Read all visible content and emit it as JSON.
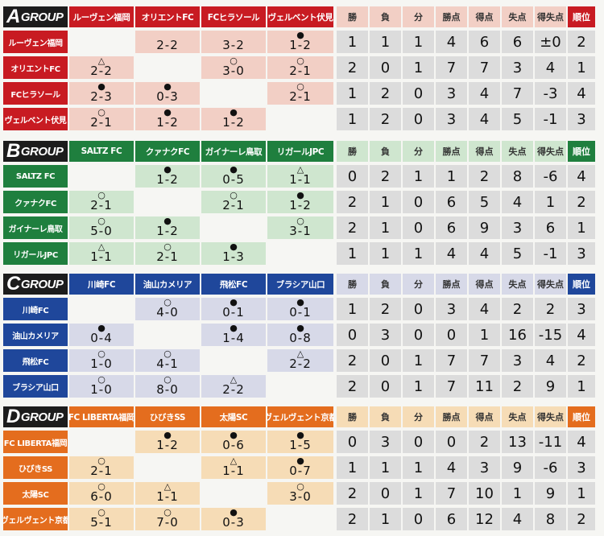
{
  "colors": {
    "A": {
      "header": "#c81b22",
      "light": "#f2cfc5"
    },
    "B": {
      "header": "#1f7f3e",
      "light": "#cfe6cf"
    },
    "C": {
      "header": "#1f479b",
      "light": "#d7d9e8"
    },
    "D": {
      "header": "#e46d1e",
      "light": "#f6dcb6"
    },
    "stat_bg": "#dcdcdc"
  },
  "stat_headers": [
    "勝",
    "負",
    "分",
    "勝点",
    "得点",
    "失点",
    "得失点",
    "順位"
  ],
  "groups": [
    {
      "letter": "A",
      "word": "GROUP",
      "teams": [
        "ルーヴェン福岡",
        "オリエントFC",
        "FCヒラソール",
        "ヴェルベント伏見"
      ],
      "results": [
        [
          null,
          {
            "sym": "",
            "text": "2-2"
          },
          {
            "sym": "",
            "text": "3-2"
          },
          {
            "sym": "●",
            "text": "1-2"
          }
        ],
        [
          {
            "sym": "△",
            "text": "2-2"
          },
          null,
          {
            "sym": "○",
            "text": "3-0"
          },
          {
            "sym": "○",
            "text": "2-1"
          }
        ],
        [
          {
            "sym": "●",
            "text": "2-3"
          },
          {
            "sym": "●",
            "text": "0-3"
          },
          null,
          {
            "sym": "○",
            "text": "2-1"
          }
        ],
        [
          {
            "sym": "○",
            "text": "2-1"
          },
          {
            "sym": "●",
            "text": "1-2"
          },
          {
            "sym": "●",
            "text": "1-2"
          },
          null
        ]
      ],
      "stats": [
        [
          "1",
          "1",
          "1",
          "4",
          "6",
          "6",
          "±0",
          "2"
        ],
        [
          "2",
          "0",
          "1",
          "7",
          "7",
          "3",
          "4",
          "1"
        ],
        [
          "1",
          "2",
          "0",
          "3",
          "4",
          "7",
          "-3",
          "4"
        ],
        [
          "1",
          "2",
          "0",
          "3",
          "4",
          "5",
          "-1",
          "3"
        ]
      ]
    },
    {
      "letter": "B",
      "word": "GROUP",
      "teams": [
        "SALTZ FC",
        "クァナクFC",
        "ガイナーレ鳥取",
        "リガールJPC"
      ],
      "results": [
        [
          null,
          {
            "sym": "●",
            "text": "1-2"
          },
          {
            "sym": "●",
            "text": "0-5"
          },
          {
            "sym": "△",
            "text": "1-1"
          }
        ],
        [
          {
            "sym": "○",
            "text": "2-1"
          },
          null,
          {
            "sym": "○",
            "text": "2-1"
          },
          {
            "sym": "●",
            "text": "1-2"
          }
        ],
        [
          {
            "sym": "○",
            "text": "5-0"
          },
          {
            "sym": "●",
            "text": "1-2"
          },
          null,
          {
            "sym": "○",
            "text": "3-1"
          }
        ],
        [
          {
            "sym": "△",
            "text": "1-1"
          },
          {
            "sym": "○",
            "text": "2-1"
          },
          {
            "sym": "●",
            "text": "1-3"
          },
          null
        ]
      ],
      "stats": [
        [
          "0",
          "2",
          "1",
          "1",
          "2",
          "8",
          "-6",
          "4"
        ],
        [
          "2",
          "1",
          "0",
          "6",
          "5",
          "4",
          "1",
          "2"
        ],
        [
          "2",
          "1",
          "0",
          "6",
          "9",
          "3",
          "6",
          "1"
        ],
        [
          "1",
          "1",
          "1",
          "4",
          "4",
          "5",
          "-1",
          "3"
        ]
      ]
    },
    {
      "letter": "C",
      "word": "GROUP",
      "teams": [
        "川崎FC",
        "油山カメリア",
        "飛松FC",
        "ブラシア山口"
      ],
      "results": [
        [
          null,
          {
            "sym": "○",
            "text": "4-0"
          },
          {
            "sym": "●",
            "text": "0-1"
          },
          {
            "sym": "●",
            "text": "0-1"
          }
        ],
        [
          {
            "sym": "●",
            "text": "0-4"
          },
          null,
          {
            "sym": "●",
            "text": "1-4"
          },
          {
            "sym": "●",
            "text": "0-8"
          }
        ],
        [
          {
            "sym": "○",
            "text": "1-0"
          },
          {
            "sym": "○",
            "text": "4-1"
          },
          null,
          {
            "sym": "△",
            "text": "2-2"
          }
        ],
        [
          {
            "sym": "○",
            "text": "1-0"
          },
          {
            "sym": "○",
            "text": "8-0"
          },
          {
            "sym": "△",
            "text": "2-2"
          },
          null
        ]
      ],
      "stats": [
        [
          "1",
          "2",
          "0",
          "3",
          "4",
          "2",
          "2",
          "3"
        ],
        [
          "0",
          "3",
          "0",
          "0",
          "1",
          "16",
          "-15",
          "4"
        ],
        [
          "2",
          "0",
          "1",
          "7",
          "7",
          "3",
          "4",
          "2"
        ],
        [
          "2",
          "0",
          "1",
          "7",
          "11",
          "2",
          "9",
          "1"
        ]
      ]
    },
    {
      "letter": "D",
      "word": "GROUP",
      "teams": [
        "FC LIBERTA福岡",
        "ひびきSS",
        "太陽SC",
        "ヴェルヴェント京都"
      ],
      "results": [
        [
          null,
          {
            "sym": "●",
            "text": "1-2"
          },
          {
            "sym": "●",
            "text": "0-6"
          },
          {
            "sym": "●",
            "text": "1-5"
          }
        ],
        [
          {
            "sym": "○",
            "text": "2-1"
          },
          null,
          {
            "sym": "△",
            "text": "1-1"
          },
          {
            "sym": "●",
            "text": "0-7"
          }
        ],
        [
          {
            "sym": "○",
            "text": "6-0"
          },
          {
            "sym": "△",
            "text": "1-1"
          },
          null,
          {
            "sym": "○",
            "text": "3-0"
          }
        ],
        [
          {
            "sym": "○",
            "text": "5-1"
          },
          {
            "sym": "○",
            "text": "7-0"
          },
          {
            "sym": "●",
            "text": "0-3"
          },
          null
        ]
      ],
      "stats": [
        [
          "0",
          "3",
          "0",
          "0",
          "2",
          "13",
          "-11",
          "4"
        ],
        [
          "1",
          "1",
          "1",
          "4",
          "3",
          "9",
          "-6",
          "3"
        ],
        [
          "2",
          "0",
          "1",
          "7",
          "10",
          "1",
          "9",
          "1"
        ],
        [
          "2",
          "1",
          "0",
          "6",
          "12",
          "4",
          "8",
          "2"
        ]
      ]
    }
  ]
}
